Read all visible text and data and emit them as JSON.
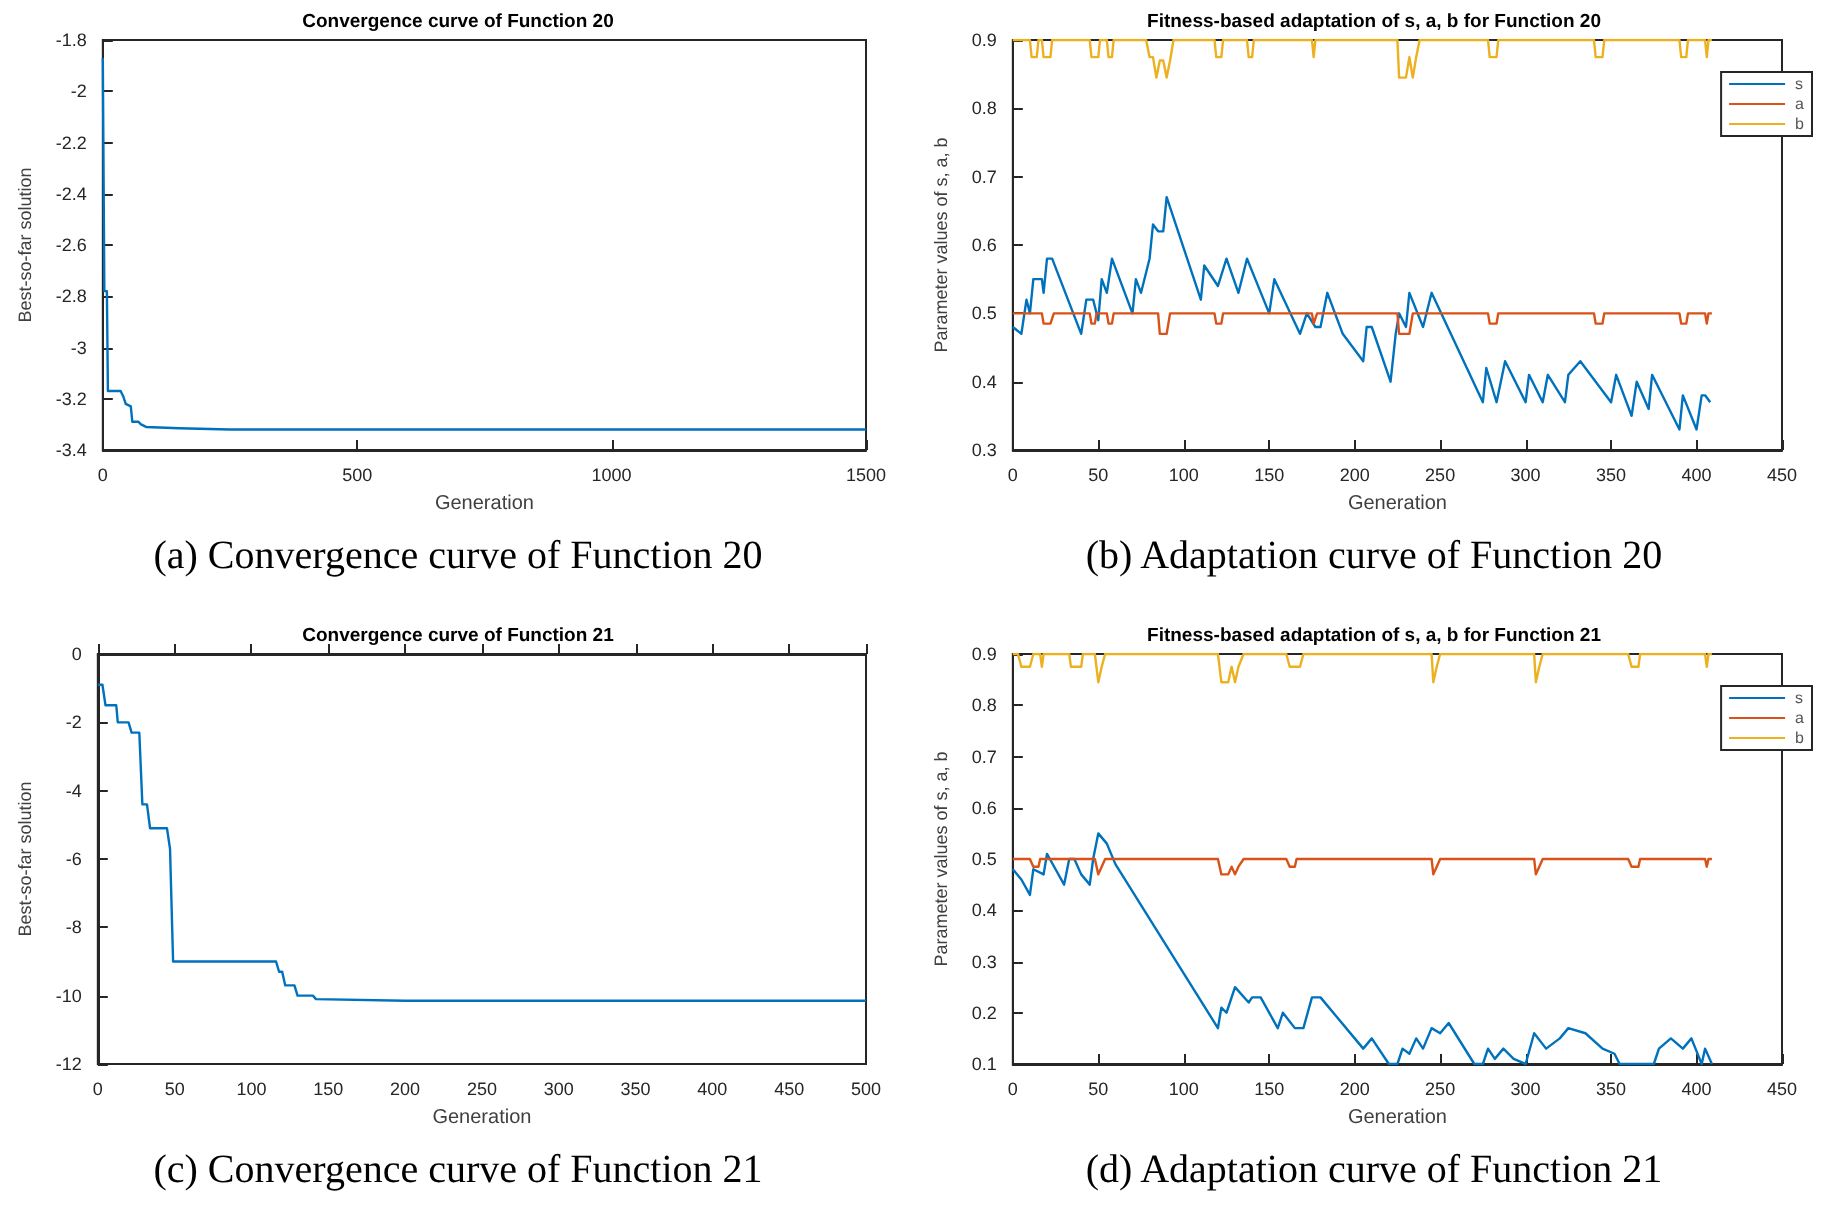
{
  "chart_data": [
    {
      "type": "line",
      "title": "Convergence curve of Function 20",
      "xlabel": "Generation",
      "ylabel": "Best-so-far solution",
      "annotations": [
        "(a) Convergence curve of Function 20"
      ],
      "xlim": [
        0,
        1500
      ],
      "xticks": [
        0,
        500,
        1000,
        1500
      ],
      "ylim": [
        -3.4,
        -1.8
      ],
      "yticks": [
        -3.4,
        -3.2,
        -3,
        -2.8,
        -2.6,
        -2.4,
        -2.2,
        -2,
        -1.8
      ],
      "grid": false,
      "legend": false,
      "marker": "none",
      "line_style": "solid",
      "series": [
        {
          "color": "#0072bd",
          "x": [
            0,
            3,
            8,
            10,
            35,
            40,
            45,
            55,
            58,
            70,
            75,
            85,
            150,
            250,
            1500
          ],
          "values": [
            -1.87,
            -2.78,
            -2.78,
            -3.17,
            -3.17,
            -3.19,
            -3.22,
            -3.23,
            -3.29,
            -3.29,
            -3.3,
            -3.31,
            -3.315,
            -3.32,
            -3.32
          ]
        }
      ]
    },
    {
      "type": "line",
      "title": "Fitness-based adaptation of s, a, b for Function 20",
      "xlabel": "Generation",
      "ylabel": "Parameter values of s, a, b",
      "annotations": [
        "(b) Adaptation curve of Function 20"
      ],
      "xlim": [
        0,
        450
      ],
      "xticks": [
        0,
        50,
        100,
        150,
        200,
        250,
        300,
        350,
        400,
        450
      ],
      "ylim": [
        0.3,
        0.9
      ],
      "yticks": [
        0.3,
        0.4,
        0.5,
        0.6,
        0.7,
        0.8,
        0.9
      ],
      "grid": false,
      "legend": "top right",
      "marker": "none",
      "line_style": "solid",
      "series": [
        {
          "name": "s",
          "color": "#0072bd",
          "x": [
            0,
            5,
            8,
            10,
            12,
            17,
            18,
            20,
            23,
            40,
            43,
            47,
            50,
            52,
            55,
            58,
            70,
            72,
            75,
            80,
            82,
            85,
            88,
            90,
            110,
            112,
            120,
            125,
            132,
            137,
            150,
            153,
            168,
            172,
            177,
            180,
            184,
            193,
            205,
            207,
            210,
            221,
            224,
            226,
            230,
            232,
            240,
            245,
            275,
            277,
            283,
            288,
            300,
            302,
            310,
            313,
            323,
            325,
            332,
            350,
            353,
            362,
            365,
            372,
            374,
            390,
            392,
            400,
            403,
            405,
            408
          ],
          "values": [
            0.48,
            0.47,
            0.52,
            0.5,
            0.55,
            0.55,
            0.53,
            0.58,
            0.58,
            0.47,
            0.52,
            0.52,
            0.49,
            0.55,
            0.53,
            0.58,
            0.5,
            0.55,
            0.53,
            0.58,
            0.63,
            0.62,
            0.62,
            0.67,
            0.52,
            0.57,
            0.54,
            0.58,
            0.53,
            0.58,
            0.5,
            0.55,
            0.47,
            0.5,
            0.48,
            0.48,
            0.53,
            0.47,
            0.43,
            0.48,
            0.48,
            0.4,
            0.47,
            0.5,
            0.48,
            0.53,
            0.48,
            0.53,
            0.37,
            0.42,
            0.37,
            0.43,
            0.37,
            0.41,
            0.37,
            0.41,
            0.37,
            0.41,
            0.43,
            0.37,
            0.41,
            0.35,
            0.4,
            0.36,
            0.41,
            0.33,
            0.38,
            0.33,
            0.38,
            0.38,
            0.37
          ]
        },
        {
          "name": "a",
          "color": "#d95319",
          "x": [
            0,
            17,
            18,
            22,
            24,
            45,
            46,
            48,
            49,
            55,
            56,
            58,
            59,
            85,
            86,
            90,
            92,
            118,
            119,
            122,
            123,
            175,
            176,
            178,
            225,
            226,
            232,
            234,
            278,
            279,
            283,
            284,
            340,
            341,
            345,
            346,
            390,
            391,
            394,
            395,
            405,
            406,
            407,
            409
          ],
          "values": [
            0.5,
            0.5,
            0.485,
            0.485,
            0.5,
            0.5,
            0.485,
            0.485,
            0.5,
            0.5,
            0.485,
            0.485,
            0.5,
            0.5,
            0.47,
            0.47,
            0.5,
            0.5,
            0.485,
            0.485,
            0.5,
            0.5,
            0.485,
            0.5,
            0.5,
            0.47,
            0.47,
            0.5,
            0.5,
            0.485,
            0.485,
            0.5,
            0.5,
            0.485,
            0.485,
            0.5,
            0.5,
            0.485,
            0.485,
            0.5,
            0.5,
            0.485,
            0.5,
            0.5
          ]
        },
        {
          "name": "b",
          "color": "#edb120",
          "x": [
            0,
            10,
            11,
            14,
            15,
            17,
            18,
            22,
            23,
            45,
            46,
            50,
            51,
            55,
            56,
            58,
            59,
            78,
            80,
            82,
            84,
            86,
            88,
            90,
            92,
            94,
            118,
            119,
            122,
            123,
            137,
            138,
            140,
            141,
            175,
            176,
            177,
            225,
            226,
            230,
            232,
            234,
            236,
            238,
            278,
            279,
            283,
            284,
            340,
            341,
            345,
            346,
            390,
            391,
            394,
            395,
            405,
            406,
            407,
            409
          ],
          "values": [
            0.9,
            0.9,
            0.875,
            0.875,
            0.9,
            0.9,
            0.875,
            0.875,
            0.9,
            0.9,
            0.875,
            0.875,
            0.9,
            0.9,
            0.875,
            0.875,
            0.9,
            0.9,
            0.875,
            0.875,
            0.845,
            0.87,
            0.87,
            0.845,
            0.87,
            0.9,
            0.9,
            0.875,
            0.875,
            0.9,
            0.9,
            0.875,
            0.875,
            0.9,
            0.9,
            0.875,
            0.9,
            0.9,
            0.845,
            0.845,
            0.875,
            0.845,
            0.875,
            0.9,
            0.9,
            0.875,
            0.875,
            0.9,
            0.9,
            0.875,
            0.875,
            0.9,
            0.9,
            0.875,
            0.875,
            0.9,
            0.9,
            0.875,
            0.9,
            0.9
          ]
        }
      ]
    },
    {
      "type": "line",
      "title": "Convergence curve of Function 21",
      "xlabel": "Generation",
      "ylabel": "Best-so-far solution",
      "annotations": [
        "(c) Convergence curve of Function 21"
      ],
      "xlim": [
        0,
        500
      ],
      "xticks": [
        0,
        50,
        100,
        150,
        200,
        250,
        300,
        350,
        400,
        450,
        500
      ],
      "ylim": [
        -12,
        0
      ],
      "yticks": [
        -12,
        -10,
        -8,
        -6,
        -4,
        -2,
        0
      ],
      "grid": false,
      "legend": false,
      "marker": "none",
      "line_style": "solid",
      "series": [
        {
          "color": "#0072bd",
          "x": [
            0,
            3,
            5,
            12,
            13,
            20,
            22,
            27,
            29,
            32,
            34,
            45,
            47,
            49,
            116,
            118,
            120,
            122,
            128,
            130,
            140,
            142,
            200,
            500
          ],
          "values": [
            -0.9,
            -0.9,
            -1.5,
            -1.5,
            -2,
            -2,
            -2.3,
            -2.3,
            -4.4,
            -4.4,
            -5.1,
            -5.1,
            -5.7,
            -9,
            -9,
            -9.3,
            -9.3,
            -9.7,
            -9.7,
            -10,
            -10,
            -10.1,
            -10.15,
            -10.15
          ]
        }
      ]
    },
    {
      "type": "line",
      "title": "Fitness-based adaptation of s, a, b for Function 21",
      "xlabel": "Generation",
      "ylabel": "Parameter values of s, a, b",
      "annotations": [
        "(d) Adaptation curve of Function 21"
      ],
      "xlim": [
        0,
        450
      ],
      "xticks": [
        0,
        50,
        100,
        150,
        200,
        250,
        300,
        350,
        400,
        450
      ],
      "ylim": [
        0.1,
        0.9
      ],
      "yticks": [
        0.1,
        0.2,
        0.3,
        0.4,
        0.5,
        0.6,
        0.7,
        0.8,
        0.9
      ],
      "grid": false,
      "legend": "top right",
      "marker": "none",
      "line_style": "solid",
      "series": [
        {
          "name": "s",
          "color": "#0072bd",
          "x": [
            0,
            5,
            10,
            12,
            18,
            20,
            25,
            30,
            33,
            36,
            40,
            45,
            47,
            50,
            55,
            60,
            120,
            122,
            125,
            130,
            138,
            140,
            145,
            155,
            158,
            165,
            170,
            175,
            180,
            200,
            205,
            210,
            220,
            225,
            228,
            232,
            236,
            240,
            245,
            250,
            255,
            270,
            275,
            278,
            282,
            287,
            293,
            300,
            305,
            312,
            320,
            325,
            335,
            345,
            352,
            355,
            360,
            365,
            375,
            378,
            385,
            392,
            397,
            403,
            405,
            409
          ],
          "values": [
            0.48,
            0.46,
            0.43,
            0.48,
            0.47,
            0.51,
            0.48,
            0.45,
            0.5,
            0.5,
            0.47,
            0.45,
            0.5,
            0.55,
            0.53,
            0.49,
            0.17,
            0.21,
            0.2,
            0.25,
            0.22,
            0.23,
            0.23,
            0.17,
            0.2,
            0.17,
            0.17,
            0.23,
            0.23,
            0.15,
            0.13,
            0.15,
            0.1,
            0.1,
            0.13,
            0.12,
            0.15,
            0.13,
            0.17,
            0.16,
            0.18,
            0.1,
            0.1,
            0.13,
            0.11,
            0.13,
            0.11,
            0.1,
            0.16,
            0.13,
            0.15,
            0.17,
            0.16,
            0.13,
            0.12,
            0.1,
            0.1,
            0.1,
            0.1,
            0.13,
            0.15,
            0.13,
            0.15,
            0.1,
            0.13,
            0.1
          ]
        },
        {
          "name": "a",
          "color": "#d95319",
          "x": [
            0,
            10,
            12,
            15,
            16,
            48,
            50,
            52,
            54,
            120,
            122,
            126,
            128,
            130,
            132,
            135,
            160,
            162,
            165,
            166,
            245,
            246,
            248,
            250,
            305,
            306,
            308,
            310,
            360,
            362,
            366,
            367,
            405,
            406,
            407,
            409
          ],
          "values": [
            0.5,
            0.5,
            0.485,
            0.485,
            0.5,
            0.5,
            0.47,
            0.485,
            0.5,
            0.5,
            0.47,
            0.47,
            0.485,
            0.47,
            0.485,
            0.5,
            0.5,
            0.485,
            0.485,
            0.5,
            0.5,
            0.47,
            0.485,
            0.5,
            0.5,
            0.47,
            0.485,
            0.5,
            0.5,
            0.485,
            0.485,
            0.5,
            0.5,
            0.485,
            0.5,
            0.5
          ]
        },
        {
          "name": "b",
          "color": "#edb120",
          "x": [
            0,
            3,
            5,
            10,
            12,
            16,
            17,
            18,
            33,
            34,
            40,
            41,
            48,
            50,
            52,
            54,
            120,
            122,
            126,
            128,
            130,
            132,
            135,
            160,
            162,
            168,
            170,
            245,
            246,
            248,
            250,
            305,
            306,
            308,
            310,
            360,
            362,
            366,
            367,
            405,
            406,
            407,
            409
          ],
          "values": [
            0.9,
            0.9,
            0.875,
            0.875,
            0.9,
            0.9,
            0.875,
            0.9,
            0.9,
            0.875,
            0.875,
            0.9,
            0.9,
            0.845,
            0.875,
            0.9,
            0.9,
            0.845,
            0.845,
            0.875,
            0.845,
            0.875,
            0.9,
            0.9,
            0.875,
            0.875,
            0.9,
            0.9,
            0.845,
            0.875,
            0.9,
            0.9,
            0.845,
            0.875,
            0.9,
            0.9,
            0.875,
            0.875,
            0.9,
            0.9,
            0.875,
            0.9,
            0.9
          ]
        }
      ]
    }
  ]
}
